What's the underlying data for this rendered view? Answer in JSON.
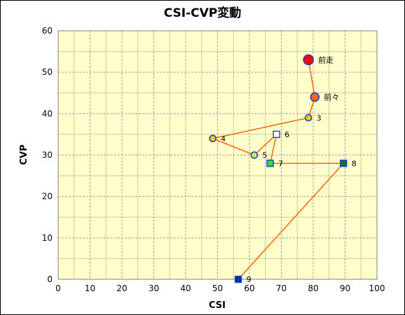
{
  "colors": {
    "plot_background": "#ffffcc",
    "grid": "#a0a0a0",
    "line": "#ff6600",
    "blue_outline": "#1f3fbf"
  },
  "chart_data": {
    "type": "scatter",
    "title": "CSI-CVP変動",
    "xlabel": "CSI",
    "ylabel": "CVP",
    "xlim": [
      0,
      100
    ],
    "ylim": [
      0,
      60
    ],
    "x_ticks": [
      0,
      10,
      20,
      30,
      40,
      50,
      60,
      70,
      80,
      90,
      100
    ],
    "y_ticks": [
      0,
      10,
      20,
      30,
      40,
      50,
      60
    ],
    "grid": true,
    "minor_grid": true,
    "points": [
      {
        "label": "前走",
        "x": 78.5,
        "y": 53,
        "marker": "circle",
        "fill": "#ff0000",
        "size": "large"
      },
      {
        "label": "前々",
        "x": 80.5,
        "y": 44,
        "marker": "circle",
        "fill": "#ff6600",
        "size": "medium"
      },
      {
        "label": "3",
        "x": 78.5,
        "y": 39,
        "marker": "circle",
        "fill": "#ffcc00",
        "size": "small"
      },
      {
        "label": "4",
        "x": 48.5,
        "y": 34,
        "marker": "circle",
        "fill": "#ffcc00",
        "size": "small"
      },
      {
        "label": "5",
        "x": 61.5,
        "y": 30,
        "marker": "circle",
        "fill": "#ccee66",
        "size": "small"
      },
      {
        "label": "6",
        "x": 68.5,
        "y": 35,
        "marker": "square",
        "fill": "#ffffff",
        "size": "small"
      },
      {
        "label": "7",
        "x": 66.5,
        "y": 28,
        "marker": "square",
        "fill": "#33dd33",
        "size": "small"
      },
      {
        "label": "8",
        "x": 89.5,
        "y": 28,
        "marker": "square",
        "fill": "#117711",
        "size": "small"
      },
      {
        "label": "9",
        "x": 56.5,
        "y": 0,
        "marker": "square",
        "fill": "#0033aa",
        "size": "small"
      }
    ]
  }
}
